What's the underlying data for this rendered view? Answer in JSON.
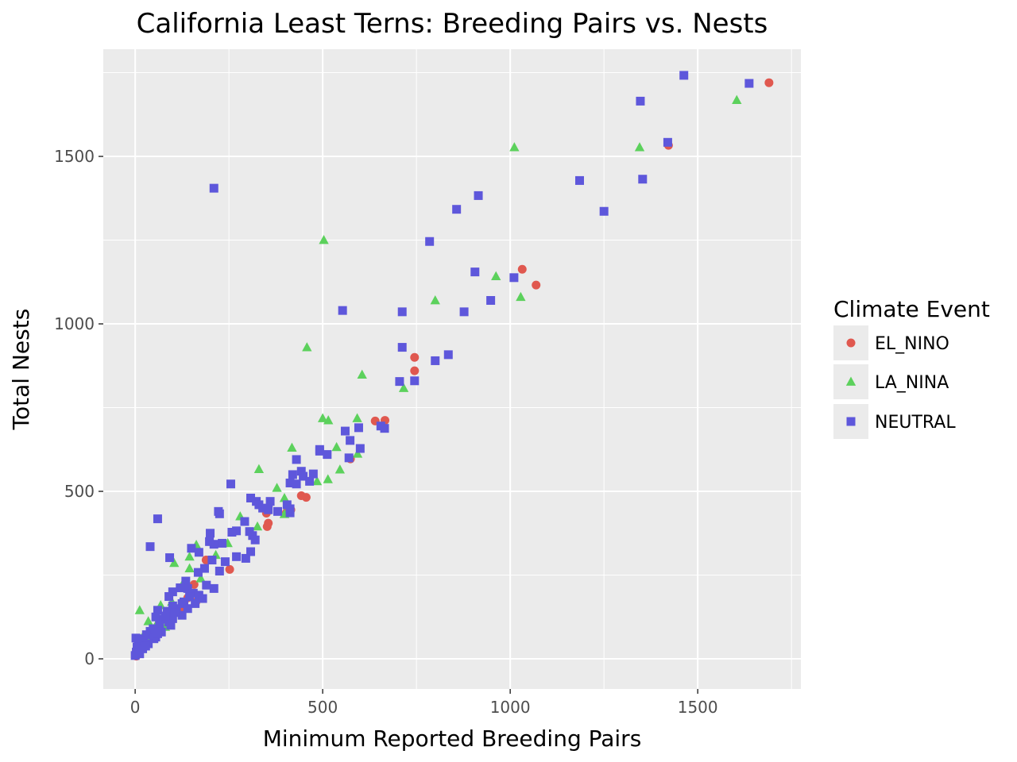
{
  "chart_data": {
    "type": "scatter",
    "title": "California Least Terns: Breeding Pairs vs. Nests",
    "xlabel": "Minimum Reported Breeding Pairs",
    "ylabel": "Total Nests",
    "xlim": [
      -85,
      1775
    ],
    "ylim": [
      -90,
      1820
    ],
    "x_ticks": [
      0,
      500,
      1000,
      1500
    ],
    "y_ticks": [
      0,
      500,
      1000,
      1500
    ],
    "x_tick_labels": [
      "0",
      "500",
      "1000",
      "1500"
    ],
    "y_tick_labels": [
      "0",
      "500",
      "1000",
      "1500"
    ],
    "grid": true,
    "panel_background": "#ebebeb",
    "legend": {
      "title": "Climate Event",
      "position": "right",
      "entries": [
        {
          "name": "EL_NINO",
          "shape": "circle",
          "color": "#e0584f"
        },
        {
          "name": "LA_NINA",
          "shape": "triangle",
          "color": "#5cd15c"
        },
        {
          "name": "NEUTRAL",
          "shape": "square",
          "color": "#5e57db"
        }
      ]
    },
    "series": [
      {
        "name": "EL_NINO",
        "shape": "circle",
        "color": "#e0584f",
        "points": [
          [
            1690,
            1720
          ],
          [
            1422,
            1533
          ],
          [
            1032,
            1163
          ],
          [
            1069,
            1116
          ],
          [
            745,
            900
          ],
          [
            745,
            860
          ],
          [
            640,
            710
          ],
          [
            666,
            712
          ],
          [
            574,
            597
          ],
          [
            443,
            487
          ],
          [
            456,
            482
          ],
          [
            355,
            405
          ],
          [
            352,
            395
          ],
          [
            350,
            435
          ],
          [
            415,
            445
          ],
          [
            403,
            436
          ],
          [
            252,
            267
          ],
          [
            189,
            295
          ],
          [
            157,
            222
          ],
          [
            140,
            182
          ],
          [
            162,
            170
          ],
          [
            120,
            148
          ],
          [
            82,
            120
          ],
          [
            62,
            98
          ],
          [
            33,
            57
          ],
          [
            20,
            40
          ],
          [
            10,
            22
          ],
          [
            3,
            8
          ]
        ]
      },
      {
        "name": "LA_NINA",
        "shape": "triangle",
        "color": "#5cd15c",
        "points": [
          [
            1604,
            1668
          ],
          [
            1011,
            1527
          ],
          [
            1345,
            1527
          ],
          [
            503,
            1250
          ],
          [
            458,
            930
          ],
          [
            962,
            1142
          ],
          [
            1028,
            1080
          ],
          [
            800,
            1070
          ],
          [
            605,
            848
          ],
          [
            716,
            808
          ],
          [
            500,
            718
          ],
          [
            515,
            712
          ],
          [
            592,
            718
          ],
          [
            593,
            612
          ],
          [
            537,
            632
          ],
          [
            546,
            565
          ],
          [
            514,
            536
          ],
          [
            485,
            530
          ],
          [
            418,
            630
          ],
          [
            330,
            566
          ],
          [
            378,
            510
          ],
          [
            398,
            480
          ],
          [
            326,
            395
          ],
          [
            398,
            432
          ],
          [
            280,
            425
          ],
          [
            247,
            345
          ],
          [
            163,
            340
          ],
          [
            215,
            310
          ],
          [
            145,
            270
          ],
          [
            104,
            286
          ],
          [
            145,
            305
          ],
          [
            175,
            240
          ],
          [
            125,
            220
          ],
          [
            98,
            170
          ],
          [
            68,
            160
          ],
          [
            12,
            145
          ],
          [
            60,
            110
          ],
          [
            35,
            112
          ],
          [
            50,
            85
          ],
          [
            30,
            68
          ],
          [
            18,
            45
          ],
          [
            8,
            25
          ],
          [
            22,
            70
          ],
          [
            80,
            95
          ],
          [
            90,
            130
          ],
          [
            110,
            150
          ]
        ]
      },
      {
        "name": "NEUTRAL",
        "shape": "square",
        "color": "#5e57db",
        "points": [
          [
            1463,
            1742
          ],
          [
            1637,
            1718
          ],
          [
            1347,
            1665
          ],
          [
            1420,
            1542
          ],
          [
            1353,
            1432
          ],
          [
            1185,
            1428
          ],
          [
            1250,
            1336
          ],
          [
            210,
            1405
          ],
          [
            915,
            1383
          ],
          [
            857,
            1342
          ],
          [
            785,
            1246
          ],
          [
            906,
            1155
          ],
          [
            1010,
            1138
          ],
          [
            948,
            1070
          ],
          [
            553,
            1040
          ],
          [
            712,
            1036
          ],
          [
            877,
            1036
          ],
          [
            712,
            930
          ],
          [
            835,
            908
          ],
          [
            800,
            890
          ],
          [
            745,
            830
          ],
          [
            705,
            828
          ],
          [
            665,
            688
          ],
          [
            655,
            695
          ],
          [
            596,
            690
          ],
          [
            560,
            680
          ],
          [
            573,
            652
          ],
          [
            600,
            628
          ],
          [
            492,
            625
          ],
          [
            492,
            620
          ],
          [
            512,
            610
          ],
          [
            570,
            600
          ],
          [
            430,
            595
          ],
          [
            443,
            560
          ],
          [
            475,
            552
          ],
          [
            420,
            550
          ],
          [
            448,
            545
          ],
          [
            465,
            530
          ],
          [
            413,
            525
          ],
          [
            430,
            522
          ],
          [
            255,
            522
          ],
          [
            360,
            470
          ],
          [
            323,
            470
          ],
          [
            308,
            480
          ],
          [
            330,
            460
          ],
          [
            380,
            440
          ],
          [
            413,
            448
          ],
          [
            413,
            436
          ],
          [
            405,
            460
          ],
          [
            355,
            445
          ],
          [
            340,
            450
          ],
          [
            222,
            440
          ],
          [
            225,
            433
          ],
          [
            60,
            418
          ],
          [
            292,
            410
          ],
          [
            270,
            382
          ],
          [
            258,
            378
          ],
          [
            200,
            375
          ],
          [
            313,
            368
          ],
          [
            305,
            380
          ],
          [
            320,
            355
          ],
          [
            40,
            335
          ],
          [
            210,
            342
          ],
          [
            198,
            350
          ],
          [
            232,
            345
          ],
          [
            150,
            330
          ],
          [
            270,
            305
          ],
          [
            295,
            300
          ],
          [
            308,
            320
          ],
          [
            170,
            318
          ],
          [
            92,
            302
          ],
          [
            205,
            295
          ],
          [
            240,
            290
          ],
          [
            225,
            262
          ],
          [
            185,
            270
          ],
          [
            168,
            258
          ],
          [
            135,
            232
          ],
          [
            140,
            210
          ],
          [
            190,
            220
          ],
          [
            155,
            196
          ],
          [
            120,
            212
          ],
          [
            100,
            200
          ],
          [
            90,
            186
          ],
          [
            170,
            190
          ],
          [
            145,
            185
          ],
          [
            130,
            170
          ],
          [
            110,
            150
          ],
          [
            100,
            158
          ],
          [
            85,
            142
          ],
          [
            60,
            145
          ],
          [
            55,
            125
          ],
          [
            75,
            118
          ],
          [
            90,
            110
          ],
          [
            65,
            100
          ],
          [
            48,
            90
          ],
          [
            40,
            82
          ],
          [
            30,
            72
          ],
          [
            22,
            60
          ],
          [
            15,
            55
          ],
          [
            8,
            48
          ],
          [
            5,
            35
          ],
          [
            3,
            20
          ],
          [
            0,
            10
          ],
          [
            2,
            62
          ],
          [
            20,
            30
          ],
          [
            55,
            65
          ],
          [
            70,
            80
          ],
          [
            100,
            120
          ],
          [
            125,
            130
          ],
          [
            160,
            165
          ],
          [
            180,
            180
          ],
          [
            210,
            210
          ],
          [
            125,
            165
          ],
          [
            140,
            150
          ],
          [
            105,
            138
          ],
          [
            80,
            128
          ],
          [
            95,
            100
          ],
          [
            50,
            60
          ],
          [
            35,
            45
          ],
          [
            12,
            15
          ],
          [
            28,
            38
          ],
          [
            60,
            75
          ]
        ]
      }
    ]
  }
}
